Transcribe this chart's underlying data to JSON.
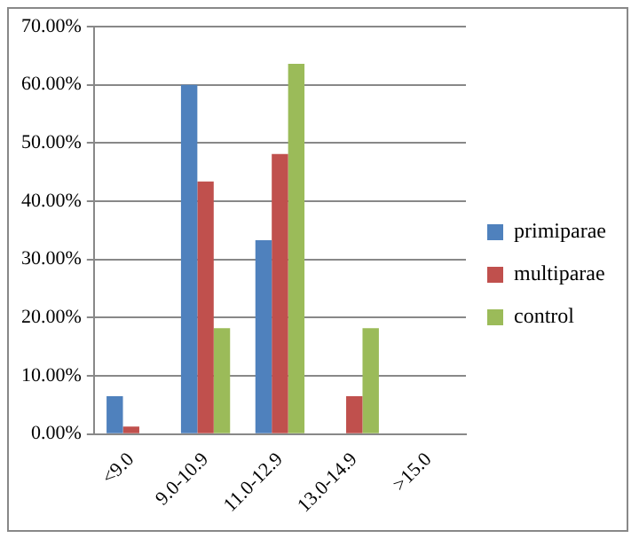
{
  "chart_data": {
    "type": "bar",
    "categories": [
      "<9.0",
      "9.0-10.9",
      "11.0-12.9",
      "13.0-14.9",
      ">15.0"
    ],
    "series": [
      {
        "name": "primiparae",
        "color": "#4f81bd",
        "values": [
          6.5,
          60,
          33.3,
          0,
          0
        ]
      },
      {
        "name": "multiparae",
        "color": "#c0504d",
        "values": [
          1.3,
          43.4,
          48.1,
          6.5,
          0
        ]
      },
      {
        "name": "control",
        "color": "#9bbb59",
        "values": [
          0,
          18.2,
          63.6,
          18.2,
          0
        ]
      }
    ],
    "ylim": [
      0,
      70
    ],
    "yticks": [
      {
        "value": 0,
        "label": "0.00%"
      },
      {
        "value": 10,
        "label": "10.00%"
      },
      {
        "value": 20,
        "label": "20.00%"
      },
      {
        "value": 30,
        "label": "30.00%"
      },
      {
        "value": 40,
        "label": "40.00%"
      },
      {
        "value": 50,
        "label": "50.00%"
      },
      {
        "value": 60,
        "label": "60.00%"
      },
      {
        "value": 70,
        "label": "70.00%"
      }
    ],
    "grid": "y",
    "legend": "right"
  }
}
